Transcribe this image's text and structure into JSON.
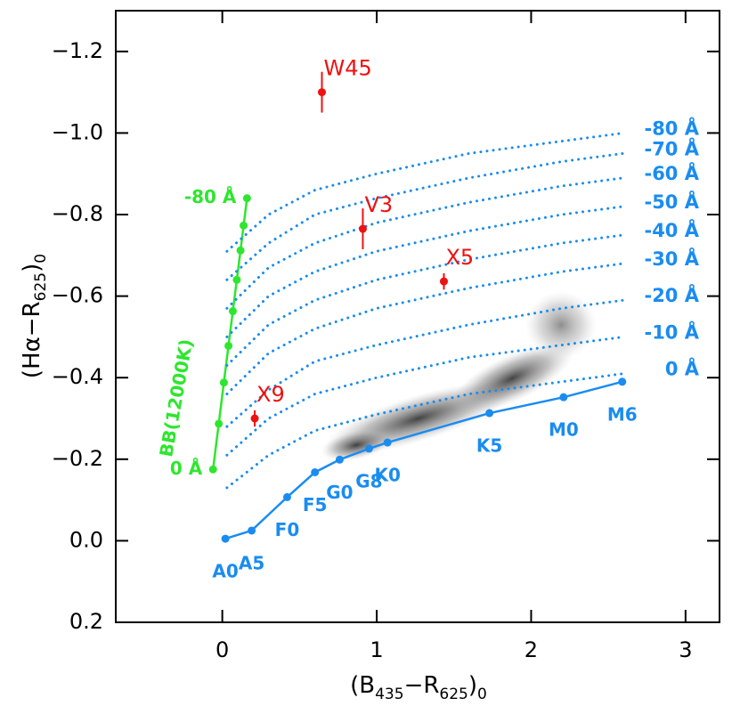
{
  "chart_data": {
    "type": "scatter",
    "x_label": {
      "parts": [
        "(B",
        "435",
        "−R",
        "625",
        ")",
        "0"
      ]
    },
    "y_label": {
      "parts": [
        "(Hα−R",
        "625",
        ")",
        "0"
      ]
    },
    "xlim": [
      -0.69,
      3.22
    ],
    "ylim": [
      0.2,
      -1.3
    ],
    "xticks": [
      0,
      1,
      2,
      3
    ],
    "yticks": [
      {
        "value": 0.2,
        "label": "0.2"
      },
      {
        "value": 0,
        "label": "0.0"
      },
      {
        "value": -0.2,
        "label": "−0.2"
      },
      {
        "value": -0.4,
        "label": "−0.4"
      },
      {
        "value": -0.6,
        "label": "−0.6"
      },
      {
        "value": -0.8,
        "label": "−0.8"
      },
      {
        "value": -1.0,
        "label": "−1.0"
      },
      {
        "value": -1.2,
        "label": "−1.2"
      }
    ],
    "series": [
      {
        "style": "line-points",
        "label_side": "below",
        "color": "#1a8cf0",
        "x": [
          0.02,
          0.19,
          0.42,
          0.6,
          0.76,
          0.95,
          1.07,
          1.73,
          2.21,
          2.59
        ],
        "y": [
          -0.005,
          -0.025,
          -0.107,
          -0.168,
          -0.199,
          -0.226,
          -0.241,
          -0.313,
          -0.352,
          -0.39
        ],
        "point_labels": [
          "A0",
          "A5",
          "F0",
          "F5",
          "G0",
          "G8",
          "K0",
          "K5",
          "M0",
          "M6"
        ]
      },
      {
        "name": "BB(12000K)",
        "style": "line-points",
        "label_side": "left",
        "color": "#2ee62e",
        "x": [
          -0.06,
          -0.023,
          0.01,
          0.04,
          0.068,
          0.094,
          0.118,
          0.138,
          0.16
        ],
        "y": [
          -0.175,
          -0.287,
          -0.388,
          -0.478,
          -0.563,
          -0.64,
          -0.712,
          -0.773,
          -0.84
        ],
        "point_labels": [
          "0 Å",
          null,
          null,
          null,
          null,
          null,
          null,
          null,
          "-80 Å"
        ]
      },
      {
        "style": "dotted",
        "color": "#1a8cf0",
        "end_label": "0 Å",
        "x": [
          0.03,
          0.3,
          0.6,
          1.0,
          1.6,
          2.2,
          2.6
        ],
        "y": [
          -0.13,
          -0.21,
          -0.27,
          -0.31,
          -0.36,
          -0.39,
          -0.41
        ]
      },
      {
        "style": "dotted",
        "color": "#1a8cf0",
        "end_label": "-10 Å",
        "x": [
          0.03,
          0.3,
          0.6,
          1.0,
          1.6,
          2.2,
          2.6
        ],
        "y": [
          -0.21,
          -0.3,
          -0.36,
          -0.4,
          -0.45,
          -0.48,
          -0.5
        ]
      },
      {
        "style": "dotted",
        "color": "#1a8cf0",
        "end_label": "-20 Å",
        "x": [
          0.03,
          0.3,
          0.6,
          1.0,
          1.6,
          2.2,
          2.6
        ],
        "y": [
          -0.28,
          -0.37,
          -0.44,
          -0.48,
          -0.53,
          -0.57,
          -0.59
        ]
      },
      {
        "style": "dotted",
        "color": "#1a8cf0",
        "end_label": "-30 Å",
        "x": [
          0.03,
          0.3,
          0.6,
          1.0,
          1.6,
          2.2,
          2.6
        ],
        "y": [
          -0.36,
          -0.46,
          -0.52,
          -0.57,
          -0.62,
          -0.66,
          -0.68
        ]
      },
      {
        "style": "dotted",
        "color": "#1a8cf0",
        "end_label": "-40 Å",
        "x": [
          0.03,
          0.3,
          0.6,
          1.0,
          1.6,
          2.2,
          2.6
        ],
        "y": [
          -0.43,
          -0.53,
          -0.59,
          -0.64,
          -0.69,
          -0.73,
          -0.75
        ]
      },
      {
        "style": "dotted",
        "color": "#1a8cf0",
        "end_label": "-50 Å",
        "x": [
          0.03,
          0.3,
          0.6,
          1.0,
          1.6,
          2.2,
          2.6
        ],
        "y": [
          -0.5,
          -0.6,
          -0.66,
          -0.71,
          -0.76,
          -0.8,
          -0.82
        ]
      },
      {
        "style": "dotted",
        "color": "#1a8cf0",
        "end_label": "-60 Å",
        "x": [
          0.03,
          0.3,
          0.6,
          1.0,
          1.6,
          2.2,
          2.6
        ],
        "y": [
          -0.57,
          -0.67,
          -0.73,
          -0.78,
          -0.83,
          -0.87,
          -0.89
        ]
      },
      {
        "style": "dotted",
        "color": "#1a8cf0",
        "end_label": "-70 Å",
        "x": [
          0.03,
          0.3,
          0.6,
          1.0,
          1.6,
          2.2,
          2.6
        ],
        "y": [
          -0.64,
          -0.73,
          -0.8,
          -0.84,
          -0.89,
          -0.93,
          -0.95
        ]
      },
      {
        "style": "dotted",
        "color": "#1a8cf0",
        "end_label": "-80 Å",
        "x": [
          0.03,
          0.3,
          0.6,
          1.0,
          1.6,
          2.2,
          2.6
        ],
        "y": [
          -0.71,
          -0.8,
          -0.86,
          -0.9,
          -0.95,
          -0.98,
          -1.0
        ]
      },
      {
        "style": "error-points",
        "color": "#ee1111",
        "x": [
          0.645,
          0.91,
          1.435,
          0.21
        ],
        "y": [
          -1.1,
          -0.765,
          -0.636,
          -0.3
        ],
        "yerr": [
          0.05,
          0.05,
          0.02,
          0.02
        ],
        "point_labels": [
          "W45",
          "V3",
          "X5",
          "X9"
        ]
      }
    ]
  }
}
